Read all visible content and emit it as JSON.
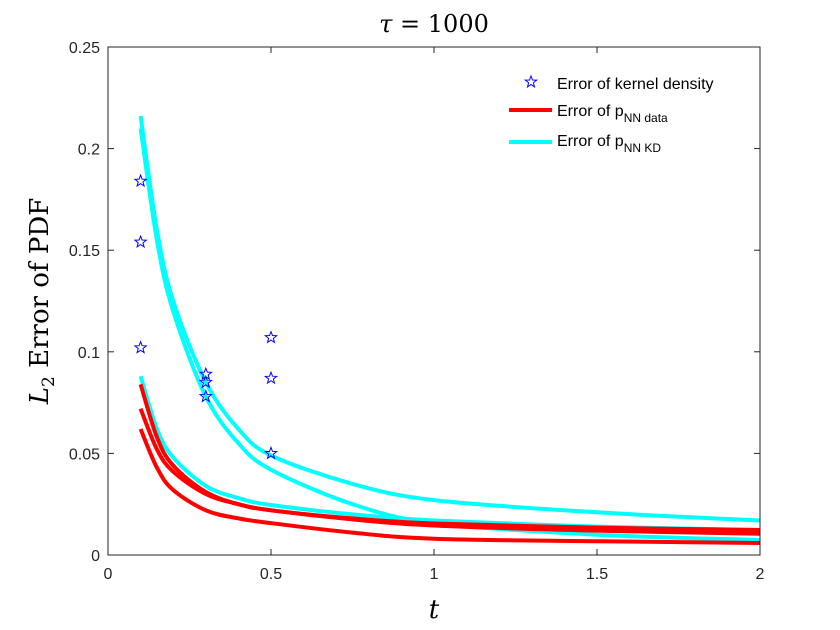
{
  "chart_data": {
    "type": "line",
    "title": "τ = 1000",
    "title_parts": {
      "symbol": "τ",
      "rest": " = 1000"
    },
    "xlabel": "t",
    "ylabel": "L2 Error of PDF",
    "ylabel_parts": {
      "L": "L",
      "sub": "2",
      "rest": " Error of PDF"
    },
    "xlim": [
      0,
      2
    ],
    "ylim": [
      0,
      0.25
    ],
    "xticks": [
      "0",
      "0.5",
      "1",
      "1.5",
      "2"
    ],
    "xtick_values": [
      0,
      0.5,
      1,
      1.5,
      2
    ],
    "yticks": [
      "0",
      "0.05",
      "0.1",
      "0.15",
      "0.2",
      "0.25"
    ],
    "ytick_values": [
      0,
      0.05,
      0.1,
      0.15,
      0.2,
      0.25
    ],
    "grid": false,
    "legend_position": "top-right",
    "legend": [
      {
        "label": "Error of kernel density",
        "marker": "star",
        "color": "#0000ff"
      },
      {
        "label": "Error of p",
        "sub": "NN data",
        "color": "#ff0000"
      },
      {
        "label": "Error of p",
        "sub": "NN KD",
        "color": "#00ffff"
      }
    ],
    "scatter": {
      "name": "Error of kernel density",
      "color": "#0000ff",
      "points": [
        [
          0.1,
          0.184
        ],
        [
          0.1,
          0.154
        ],
        [
          0.1,
          0.102
        ],
        [
          0.3,
          0.089
        ],
        [
          0.3,
          0.085
        ],
        [
          0.3,
          0.078
        ],
        [
          0.5,
          0.107
        ],
        [
          0.5,
          0.087
        ],
        [
          0.5,
          0.05
        ]
      ]
    },
    "x": [
      0.1,
      0.15,
      0.2,
      0.3,
      0.4,
      0.5,
      0.75,
      1,
      1.5,
      2
    ],
    "series": [
      {
        "name": "Error of p NN KD",
        "color": "#00ffff",
        "values": [
          0.216,
          0.16,
          0.125,
          0.085,
          0.062,
          0.049,
          0.035,
          0.027,
          0.021,
          0.017
        ]
      },
      {
        "name": "Error of p NN KD",
        "color": "#00ffff",
        "values": [
          0.21,
          0.155,
          0.12,
          0.078,
          0.055,
          0.042,
          0.025,
          0.0157,
          0.01,
          0.0074
        ]
      },
      {
        "name": "Error of p NN KD",
        "color": "#00ffff",
        "values": [
          0.088,
          0.062,
          0.048,
          0.034,
          0.028,
          0.0246,
          0.02,
          0.017,
          0.014,
          0.0123
        ]
      },
      {
        "name": "Error of p NN data",
        "color": "#ff0000",
        "values": [
          0.084,
          0.058,
          0.044,
          0.031,
          0.025,
          0.022,
          0.018,
          0.0155,
          0.0135,
          0.0123
        ]
      },
      {
        "name": "Error of p NN data",
        "color": "#ff0000",
        "values": [
          0.072,
          0.052,
          0.041,
          0.03,
          0.025,
          0.022,
          0.0175,
          0.0145,
          0.012,
          0.0105
        ]
      },
      {
        "name": "Error of p NN data",
        "color": "#ff0000",
        "values": [
          0.062,
          0.043,
          0.032,
          0.022,
          0.018,
          0.0157,
          0.011,
          0.008,
          0.0068,
          0.0059
        ]
      }
    ]
  }
}
